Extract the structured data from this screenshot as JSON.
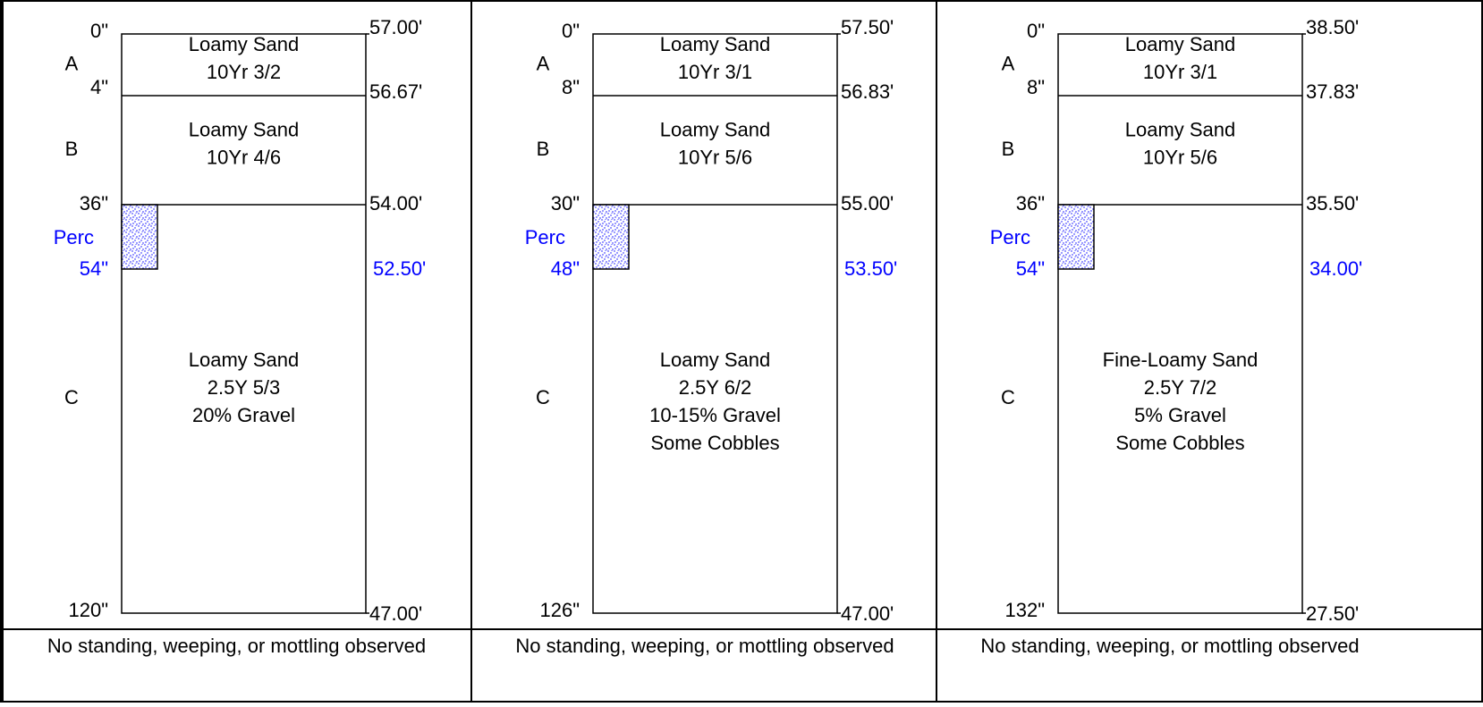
{
  "colors": {
    "line": "#000000",
    "text": "#000000",
    "perc_text": "#0000ff",
    "perc_fill": "#ffffff",
    "perc_dots": "#0000ff",
    "frame": "#000000"
  },
  "profiles": [
    {
      "top_depth": "0\"",
      "top_elev": "57.00'",
      "horizons": [
        {
          "code": "A",
          "bottom_depth": "4\"",
          "bottom_elev": "56.67'",
          "desc": [
            "Loamy Sand",
            "10Yr 3/2"
          ]
        },
        {
          "code": "B",
          "bottom_depth": "36\"",
          "bottom_elev": "54.00'",
          "desc": [
            "Loamy Sand",
            "10Yr 4/6"
          ]
        },
        {
          "code": "C",
          "bottom_depth": "120\"",
          "bottom_elev": "47.00'",
          "desc": [
            "Loamy Sand",
            "2.5Y 5/3",
            "20% Gravel"
          ]
        }
      ],
      "perc": {
        "label": "Perc",
        "depth": "54\"",
        "elev": "52.50'"
      },
      "note": "No standing, weeping, or mottling observed"
    },
    {
      "top_depth": "0\"",
      "top_elev": "57.50'",
      "horizons": [
        {
          "code": "A",
          "bottom_depth": "8\"",
          "bottom_elev": "56.83'",
          "desc": [
            "Loamy Sand",
            "10Yr 3/1"
          ]
        },
        {
          "code": "B",
          "bottom_depth": "30\"",
          "bottom_elev": "55.00'",
          "desc": [
            "Loamy Sand",
            "10Yr 5/6"
          ]
        },
        {
          "code": "C",
          "bottom_depth": "126\"",
          "bottom_elev": "47.00'",
          "desc": [
            "Loamy Sand",
            "2.5Y 6/2",
            "10-15% Gravel",
            "Some Cobbles"
          ]
        }
      ],
      "perc": {
        "label": "Perc",
        "depth": "48\"",
        "elev": "53.50'"
      },
      "note": "No standing, weeping, or mottling observed"
    },
    {
      "top_depth": "0\"",
      "top_elev": "38.50'",
      "horizons": [
        {
          "code": "A",
          "bottom_depth": "8\"",
          "bottom_elev": "37.83'",
          "desc": [
            "Loamy Sand",
            "10Yr 3/1"
          ]
        },
        {
          "code": "B",
          "bottom_depth": "36\"",
          "bottom_elev": "35.50'",
          "desc": [
            "Loamy Sand",
            "10Yr 5/6"
          ]
        },
        {
          "code": "C",
          "bottom_depth": "132\"",
          "bottom_elev": "27.50'",
          "desc": [
            "Fine-Loamy Sand",
            "2.5Y 7/2",
            "5% Gravel",
            "Some Cobbles"
          ]
        }
      ],
      "perc": {
        "label": "Perc",
        "depth": "54\"",
        "elev": "34.00'"
      },
      "note": "No standing, weeping, or mottling observed"
    }
  ]
}
